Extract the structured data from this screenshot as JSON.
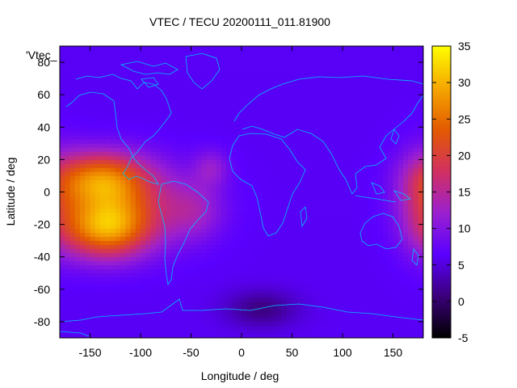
{
  "chart_data": {
    "type": "heatmap",
    "title": "VTEC / TECU 20200111_011.81900",
    "xlabel": "Longitude / deg",
    "ylabel": "Latitude / deg",
    "series_label": "'Vtec_",
    "xlim": [
      -180,
      180
    ],
    "ylim": [
      -90,
      90
    ],
    "x_ticks": [
      -150,
      -100,
      -50,
      0,
      50,
      100,
      150
    ],
    "y_ticks": [
      -80,
      -60,
      -40,
      -20,
      0,
      20,
      40,
      60,
      80
    ],
    "colorbar": {
      "min": -5,
      "max": 35,
      "ticks": [
        -5,
        0,
        5,
        10,
        15,
        20,
        25,
        30,
        35
      ]
    },
    "background_level": 6,
    "regions": [
      {
        "name": "pacific-anomaly-north",
        "lon": -140,
        "lat": 8,
        "peak": 24,
        "sigma_lon": 32,
        "sigma_lat": 12
      },
      {
        "name": "pacific-anomaly-south",
        "lon": -135,
        "lat": -22,
        "peak": 26,
        "sigma_lon": 30,
        "sigma_lat": 13
      },
      {
        "name": "pacific-anomaly-core",
        "lon": -100,
        "lat": -8,
        "peak": 14,
        "sigma_lon": 45,
        "sigma_lat": 18
      },
      {
        "name": "south-america-anomaly",
        "lon": -45,
        "lat": -12,
        "peak": 10,
        "sigma_lon": 18,
        "sigma_lat": 12
      },
      {
        "name": "west-pacific-anomaly",
        "lon": 178,
        "lat": -5,
        "peak": 12,
        "sigma_lon": 18,
        "sigma_lat": 22
      },
      {
        "name": "atlantic-anomaly",
        "lon": -30,
        "lat": 15,
        "peak": 5,
        "sigma_lon": 12,
        "sigma_lat": 8
      },
      {
        "name": "antarctic-low",
        "lon": 20,
        "lat": -72,
        "peak": -5,
        "sigma_lon": 25,
        "sigma_lat": 8
      }
    ],
    "colors": {
      "coastline": "#00bfff",
      "colormap": [
        "#000000",
        "#3b007a",
        "#5a00ff",
        "#9b20cf",
        "#d23060",
        "#e35a00",
        "#f5a800",
        "#ffff00"
      ]
    }
  }
}
